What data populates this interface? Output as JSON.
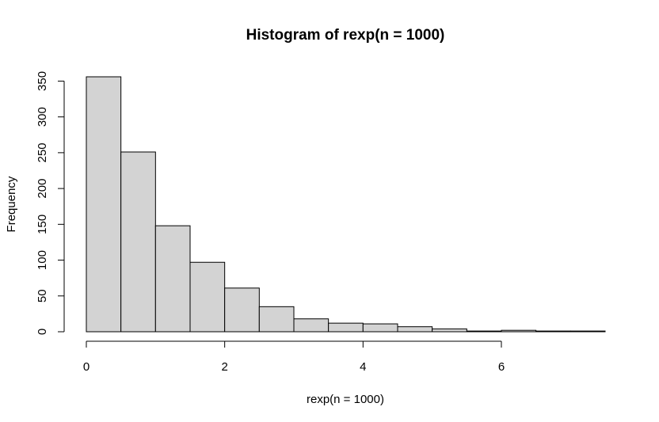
{
  "chart_data": {
    "type": "bar",
    "title": "Histogram of rexp(n = 1000)",
    "xlabel": "rexp(n = 1000)",
    "ylabel": "Frequency",
    "bin_edges": [
      0,
      0.5,
      1,
      1.5,
      2,
      2.5,
      3,
      3.5,
      4,
      4.5,
      5,
      5.5,
      6,
      6.5,
      7,
      7.5
    ],
    "values": [
      356,
      251,
      148,
      97,
      61,
      35,
      18,
      12,
      11,
      7,
      4,
      1,
      2,
      1,
      1
    ],
    "xlim": [
      0,
      7.5
    ],
    "ylim": [
      0,
      356
    ],
    "x_ticks": [
      0,
      2,
      4,
      6
    ],
    "x_tick_labels": [
      "0",
      "2",
      "4",
      "6"
    ],
    "y_ticks": [
      0,
      50,
      100,
      150,
      200,
      250,
      300,
      350
    ],
    "y_tick_labels": [
      "0",
      "50",
      "100",
      "150",
      "200",
      "250",
      "300",
      "350"
    ],
    "grid": false,
    "legend": "none",
    "bar_color": "#d3d3d3",
    "edge_color": "#000000"
  }
}
